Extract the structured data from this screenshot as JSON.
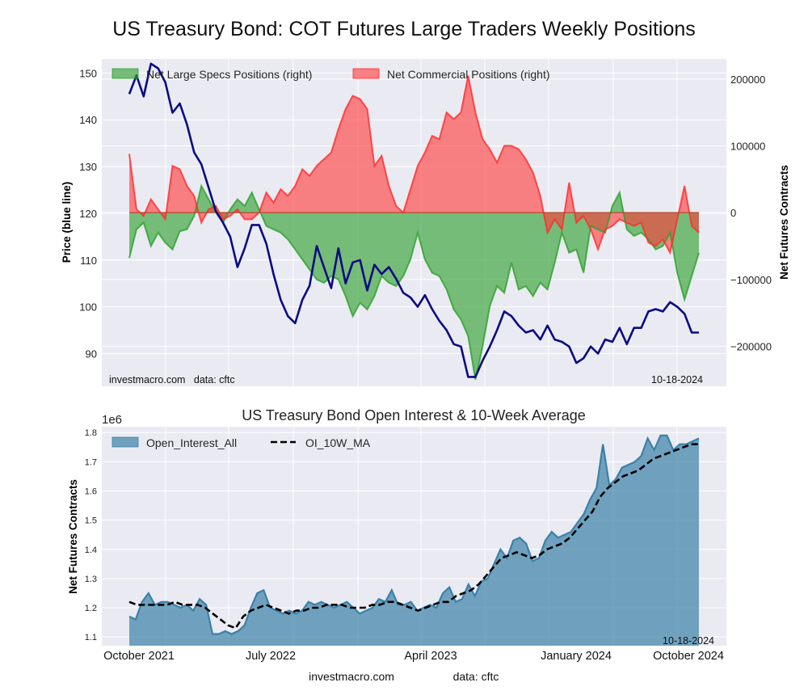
{
  "page": {
    "title": "US Treasury Bond: COT Futures Large Traders Weekly Positions",
    "footer_site": "investmacro.com",
    "footer_source": "data: cftc"
  },
  "chart_data": [
    {
      "type": "line",
      "title": "US Treasury Bond: COT Futures Large Traders Weekly Positions",
      "ylabel": "Price (blue line)",
      "y2label": "Net Futures Contracts",
      "ylim": [
        83,
        153
      ],
      "y2lim": [
        -260000,
        230000
      ],
      "yticks": [
        "150",
        "140",
        "130",
        "120",
        "110",
        "100",
        "90"
      ],
      "y2ticks": [
        "200000",
        "100000",
        "0",
        "−100000",
        "−200000"
      ],
      "xlim": [
        "2021-08",
        "2024-12"
      ],
      "grid": true,
      "legend_position": "top",
      "annotation_left": "investmacro.com   data: cftc",
      "annotation_right": "10-18-2024",
      "x": [
        "2021-10-05",
        "2021-10-19",
        "2021-11-02",
        "2021-11-16",
        "2021-11-30",
        "2021-12-14",
        "2021-12-28",
        "2022-01-11",
        "2022-01-25",
        "2022-02-08",
        "2022-02-22",
        "2022-03-08",
        "2022-03-22",
        "2022-04-05",
        "2022-04-19",
        "2022-05-03",
        "2022-05-17",
        "2022-05-31",
        "2022-06-14",
        "2022-06-28",
        "2022-07-12",
        "2022-07-26",
        "2022-08-09",
        "2022-08-23",
        "2022-09-06",
        "2022-09-20",
        "2022-10-04",
        "2022-10-18",
        "2022-11-01",
        "2022-11-15",
        "2022-11-29",
        "2022-12-13",
        "2022-12-27",
        "2023-01-10",
        "2023-01-24",
        "2023-02-07",
        "2023-02-21",
        "2023-03-07",
        "2023-03-21",
        "2023-04-04",
        "2023-04-18",
        "2023-05-02",
        "2023-05-16",
        "2023-05-30",
        "2023-06-13",
        "2023-06-27",
        "2023-07-11",
        "2023-07-25",
        "2023-08-08",
        "2023-08-22",
        "2023-09-05",
        "2023-09-19",
        "2023-10-03",
        "2023-10-17",
        "2023-10-31",
        "2023-11-14",
        "2023-11-28",
        "2023-12-12",
        "2023-12-26",
        "2024-01-09",
        "2024-01-23",
        "2024-02-06",
        "2024-02-20",
        "2024-03-05",
        "2024-03-19",
        "2024-04-02",
        "2024-04-16",
        "2024-04-30",
        "2024-05-14",
        "2024-05-28",
        "2024-06-11",
        "2024-06-25",
        "2024-07-09",
        "2024-07-23",
        "2024-08-06",
        "2024-08-20",
        "2024-09-03",
        "2024-09-17",
        "2024-10-01",
        "2024-10-15"
      ],
      "series": [
        {
          "name": "Price (blue line)",
          "axis": "left",
          "color": "#0b0b80",
          "values": [
            145.5,
            149.5,
            145.0,
            152.0,
            151.0,
            148.0,
            141.5,
            143.5,
            139.0,
            133.0,
            130.5,
            125.5,
            120.5,
            118.0,
            115.0,
            108.5,
            112.5,
            117.5,
            117.5,
            113.5,
            107.0,
            101.5,
            98.0,
            96.5,
            101.5,
            104.5,
            113.0,
            108.5,
            104.0,
            112.5,
            105.0,
            109.5,
            110.0,
            103.5,
            109.0,
            107.0,
            108.5,
            106.0,
            103.0,
            102.0,
            100.0,
            102.5,
            99.5,
            97.0,
            95.0,
            92.0,
            91.5,
            85.0,
            85.0,
            88.5,
            91.5,
            95.0,
            99.0,
            98.0,
            96.0,
            94.5,
            95.0,
            93.0,
            96.0,
            93.0,
            92.5,
            91.5,
            88.0,
            89.0,
            91.5,
            90.0,
            93.0,
            92.5,
            95.5,
            92.0,
            95.5,
            95.5,
            99.0,
            99.5,
            99.0,
            101.0,
            100.0,
            98.5,
            94.5,
            94.5
          ]
        },
        {
          "name": "Net Large Specs Positions (right)",
          "axis": "right",
          "color": "#2ca02c",
          "fill": "rgba(44,160,44,0.62)",
          "values": [
            -68000,
            -25000,
            -15000,
            -50000,
            -30000,
            -45000,
            -55000,
            -28000,
            -25000,
            -5000,
            40000,
            20000,
            0,
            -15000,
            5000,
            20000,
            10000,
            30000,
            5000,
            -20000,
            -25000,
            -30000,
            -40000,
            -55000,
            -70000,
            -85000,
            -100000,
            -105000,
            -95000,
            -100000,
            -125000,
            -155000,
            -135000,
            -145000,
            -125000,
            -95000,
            -105000,
            -110000,
            -95000,
            -70000,
            -30000,
            -70000,
            -90000,
            -95000,
            -115000,
            -145000,
            -160000,
            -185000,
            -250000,
            -200000,
            -140000,
            -110000,
            -120000,
            -75000,
            -115000,
            -110000,
            -125000,
            -105000,
            -115000,
            -75000,
            -30000,
            -60000,
            -55000,
            -90000,
            -20000,
            -25000,
            -30000,
            10000,
            30000,
            -25000,
            -35000,
            -30000,
            -40000,
            -55000,
            -50000,
            -30000,
            -90000,
            -130000,
            -95000,
            -60000
          ]
        },
        {
          "name": "Net Commercial Positions (right)",
          "axis": "right",
          "color": "#ff2a2a",
          "fill": "rgba(255,60,60,0.62)",
          "values": [
            88000,
            5000,
            -5000,
            20000,
            5000,
            -10000,
            70000,
            65000,
            40000,
            25000,
            -15000,
            5000,
            10000,
            -10000,
            -5000,
            5000,
            -10000,
            -10000,
            0,
            30000,
            15000,
            35000,
            25000,
            40000,
            65000,
            55000,
            70000,
            80000,
            90000,
            125000,
            155000,
            175000,
            170000,
            155000,
            70000,
            85000,
            40000,
            10000,
            0,
            35000,
            70000,
            90000,
            115000,
            110000,
            150000,
            140000,
            150000,
            205000,
            150000,
            110000,
            95000,
            75000,
            100000,
            100000,
            95000,
            80000,
            60000,
            25000,
            -30000,
            -10000,
            -25000,
            45000,
            -15000,
            -5000,
            -25000,
            -55000,
            -25000,
            -20000,
            -10000,
            -15000,
            -20000,
            -15000,
            -45000,
            -50000,
            -40000,
            -60000,
            -10000,
            40000,
            -20000,
            -30000
          ]
        }
      ]
    },
    {
      "type": "area",
      "title": "US Treasury Bond Open Interest & 10-Week Average",
      "ylabel": "Net Futures Contracts",
      "scale_label": "1e6",
      "ylim": [
        1.07,
        1.82
      ],
      "yticks": [
        "1.8",
        "1.7",
        "1.6",
        "1.5",
        "1.4",
        "1.3",
        "1.2",
        "1.1"
      ],
      "xticks": [
        "October 2021",
        "July 2022",
        "April 2023",
        "January 2024",
        "October 2024"
      ],
      "grid": true,
      "legend_position": "top-left",
      "annotation_right": "10-18-2024",
      "series": [
        {
          "name": "Open_Interest_All",
          "color": "#3b81a8",
          "fill": "rgba(59,129,168,0.7)",
          "values": [
            1.17,
            1.16,
            1.22,
            1.25,
            1.21,
            1.22,
            1.22,
            1.21,
            1.2,
            1.21,
            1.19,
            1.23,
            1.21,
            1.11,
            1.11,
            1.12,
            1.11,
            1.12,
            1.14,
            1.2,
            1.25,
            1.26,
            1.2,
            1.19,
            1.18,
            1.19,
            1.18,
            1.19,
            1.22,
            1.21,
            1.22,
            1.21,
            1.2,
            1.21,
            1.22,
            1.2,
            1.18,
            1.19,
            1.2,
            1.23,
            1.22,
            1.26,
            1.21,
            1.21,
            1.22,
            1.19,
            1.2,
            1.21,
            1.2,
            1.25,
            1.27,
            1.22,
            1.23,
            1.28,
            1.24,
            1.29,
            1.3,
            1.35,
            1.4,
            1.37,
            1.43,
            1.44,
            1.42,
            1.36,
            1.37,
            1.43,
            1.46,
            1.44,
            1.45,
            1.46,
            1.49,
            1.52,
            1.57,
            1.61,
            1.76,
            1.62,
            1.64,
            1.68,
            1.69,
            1.7,
            1.72,
            1.78,
            1.74,
            1.79,
            1.79,
            1.74,
            1.76,
            1.76,
            1.77,
            1.78
          ]
        },
        {
          "name": "OI_10W_MA",
          "color": "#000000",
          "style": "dashed",
          "values": [
            1.22,
            1.21,
            1.21,
            1.21,
            1.21,
            1.21,
            1.22,
            1.21,
            1.21,
            1.21,
            1.2,
            1.18,
            1.16,
            1.14,
            1.13,
            1.17,
            1.19,
            1.2,
            1.21,
            1.2,
            1.19,
            1.18,
            1.19,
            1.19,
            1.2,
            1.2,
            1.21,
            1.21,
            1.21,
            1.2,
            1.2,
            1.2,
            1.21,
            1.21,
            1.22,
            1.22,
            1.21,
            1.2,
            1.19,
            1.2,
            1.21,
            1.22,
            1.22,
            1.24,
            1.25,
            1.26,
            1.28,
            1.31,
            1.34,
            1.37,
            1.38,
            1.39,
            1.38,
            1.37,
            1.38,
            1.4,
            1.41,
            1.42,
            1.44,
            1.47,
            1.5,
            1.53,
            1.58,
            1.61,
            1.63,
            1.65,
            1.66,
            1.67,
            1.69,
            1.71,
            1.72,
            1.73,
            1.74,
            1.75,
            1.76,
            1.76
          ]
        }
      ]
    }
  ]
}
